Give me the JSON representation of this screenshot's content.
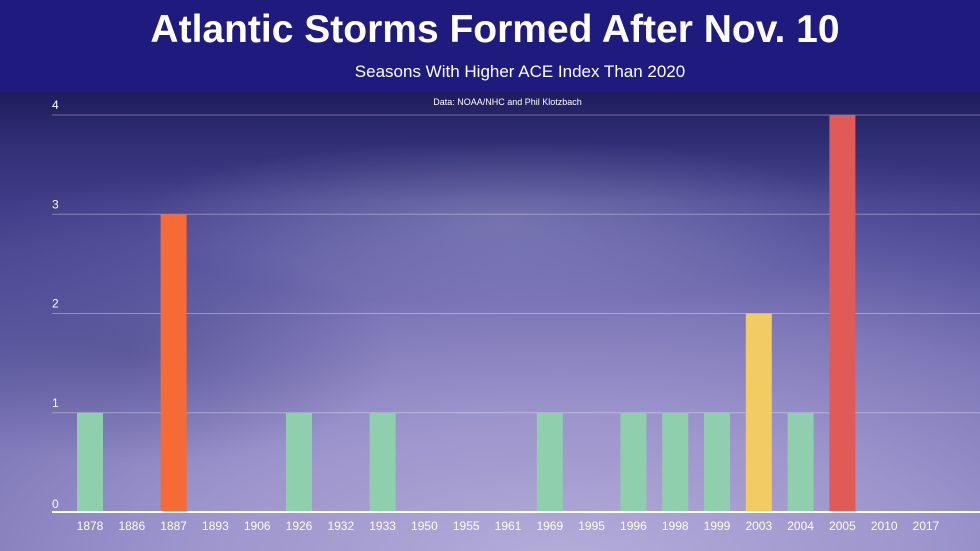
{
  "title": "Atlantic Storms Formed After Nov. 10",
  "subtitle": "Seasons With Higher ACE Index Than 2020",
  "source": "Data: NOAA/NHC and Phil Klotzbach",
  "chart_data": {
    "type": "bar",
    "title": "Atlantic Storms Formed After Nov. 10",
    "subtitle": "Seasons With Higher ACE Index Than 2020",
    "xlabel": "",
    "ylabel": "",
    "ylim": [
      0,
      4
    ],
    "yticks": [
      0,
      1,
      2,
      3,
      4
    ],
    "grid": true,
    "legend": "none",
    "categories": [
      "1878",
      "1886",
      "1887",
      "1893",
      "1906",
      "1926",
      "1932",
      "1933",
      "1950",
      "1955",
      "1961",
      "1969",
      "1995",
      "1996",
      "1998",
      "1999",
      "2003",
      "2004",
      "2005",
      "2010",
      "2017"
    ],
    "values": [
      1,
      0,
      3,
      0,
      0,
      1,
      0,
      1,
      0,
      0,
      0,
      1,
      0,
      1,
      1,
      1,
      2,
      1,
      4,
      0,
      0
    ],
    "colors": {
      "1": "#8fcfae",
      "2": "#f2cb62",
      "3": "#f56a35",
      "4": "#e05a58"
    }
  }
}
